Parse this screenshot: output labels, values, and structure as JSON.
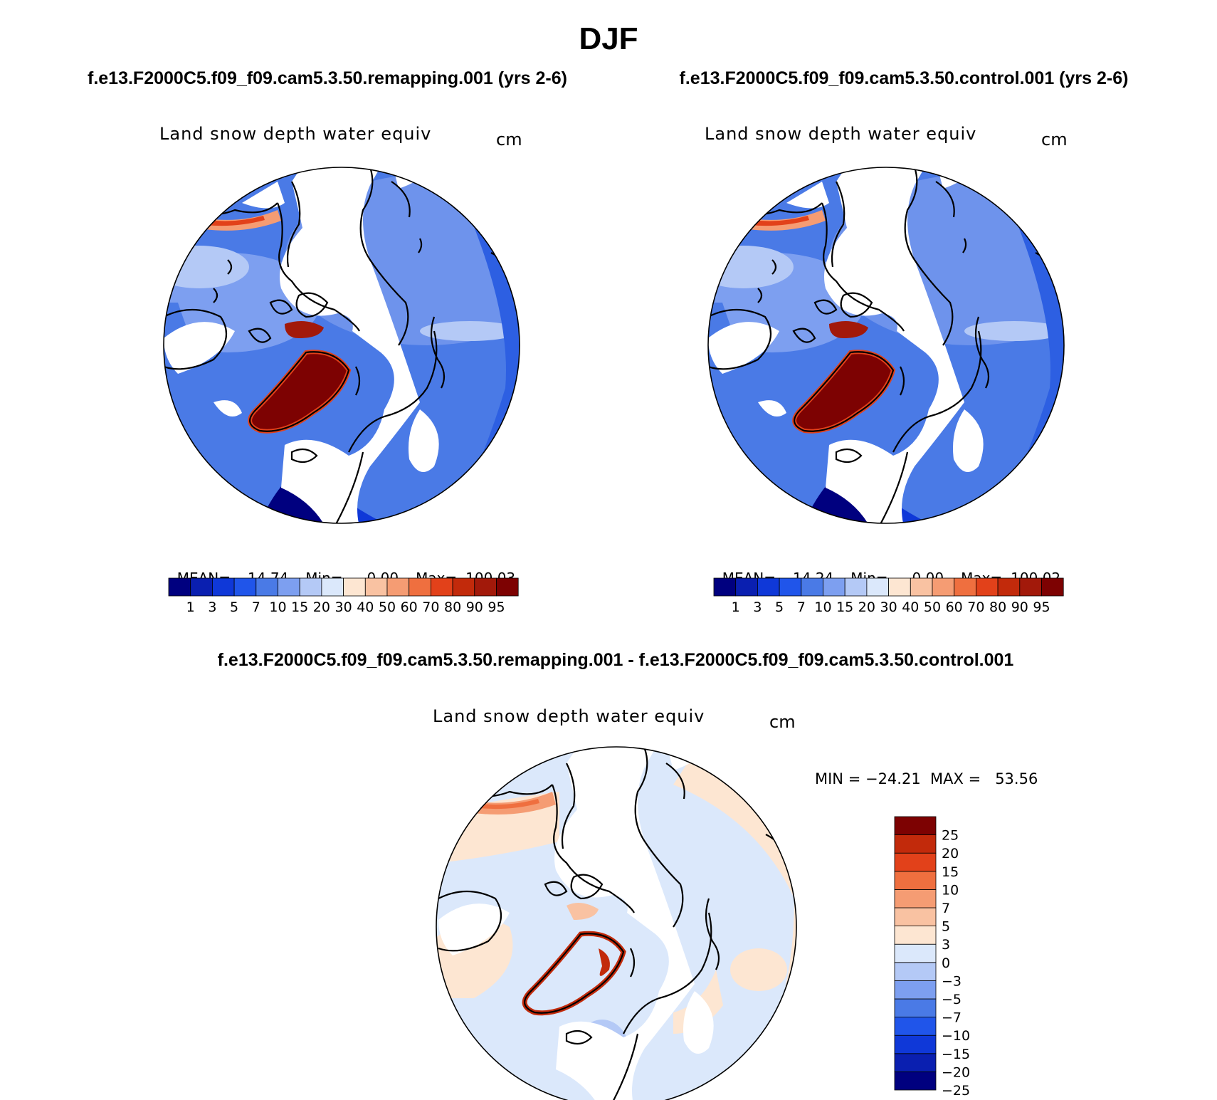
{
  "season": "DJF",
  "left_panel": {
    "case_title": "f.e13.F2000C5.f09_f09.cam5.3.50.remapping.001 (yrs 2-6)",
    "var_title": "Land snow depth water equiv",
    "units": "cm",
    "stats": {
      "mean_label": "MEAN=",
      "mean": "14.74",
      "min_label": "Min=",
      "min": "0.00",
      "max_label": "Max=",
      "max": "100.03"
    }
  },
  "right_panel": {
    "case_title": "f.e13.F2000C5.f09_f09.cam5.3.50.control.001 (yrs 2-6)",
    "var_title": "Land snow depth water equiv",
    "units": "cm",
    "stats": {
      "mean_label": "MEAN=",
      "mean": "14.24",
      "min_label": "Min=",
      "min": "0.00",
      "max_label": "Max=",
      "max": "100.02"
    }
  },
  "diff_panel": {
    "case_title": "f.e13.F2000C5.f09_f09.cam5.3.50.remapping.001 - f.e13.F2000C5.f09_f09.cam5.3.50.control.001",
    "var_title": "Land snow depth water equiv",
    "units": "cm",
    "stats_text": "MIN = −24.21  MAX =   53.56"
  },
  "colors": {
    "abs_scale": [
      "#00007f",
      "#0a1fb0",
      "#0f38d8",
      "#2055ea",
      "#4a7ae6",
      "#7d9ff0",
      "#b4c9f6",
      "#dbe8fb",
      "#fde6d2",
      "#f9c2a2",
      "#f59c73",
      "#ef6f3f",
      "#e2411a",
      "#c22a0b",
      "#a2190a",
      "#7d0202"
    ],
    "diff_scale": [
      "#00007f",
      "#0a1fb0",
      "#0f38d8",
      "#2055ea",
      "#4a7ae6",
      "#7d9ff0",
      "#b4c9f6",
      "#dbe8fb",
      "#fde6d2",
      "#f9c2a2",
      "#f59c73",
      "#ef6f3f",
      "#e2411a",
      "#c22a0b",
      "#7d0202"
    ]
  },
  "chart_data": [
    {
      "type": "heatmap",
      "title": "Land snow depth water equiv",
      "subtitle": "f.e13.F2000C5.f09_f09.cam5.3.50.remapping.001 (yrs 2-6)",
      "units": "cm",
      "projection": "north polar stereographic",
      "colorbar_levels": [
        "1",
        "3",
        "5",
        "7",
        "10",
        "15",
        "20",
        "30",
        "40",
        "50",
        "60",
        "70",
        "80",
        "90",
        "95"
      ],
      "mean": 14.74,
      "min": 0.0,
      "max": 100.03
    },
    {
      "type": "heatmap",
      "title": "Land snow depth water equiv",
      "subtitle": "f.e13.F2000C5.f09_f09.cam5.3.50.control.001 (yrs 2-6)",
      "units": "cm",
      "projection": "north polar stereographic",
      "colorbar_levels": [
        "1",
        "3",
        "5",
        "7",
        "10",
        "15",
        "20",
        "30",
        "40",
        "50",
        "60",
        "70",
        "80",
        "90",
        "95"
      ],
      "mean": 14.24,
      "min": 0.0,
      "max": 100.02
    },
    {
      "type": "heatmap",
      "title": "Land snow depth water equiv",
      "subtitle": "f.e13.F2000C5.f09_f09.cam5.3.50.remapping.001 - f.e13.F2000C5.f09_f09.cam5.3.50.control.001",
      "units": "cm",
      "projection": "north polar stereographic",
      "colorbar_levels": [
        "25",
        "20",
        "15",
        "10",
        "7",
        "5",
        "3",
        "0",
        "−3",
        "−5",
        "−7",
        "−10",
        "−15",
        "−20",
        "−25"
      ],
      "min": -24.21,
      "max": 53.56
    }
  ]
}
